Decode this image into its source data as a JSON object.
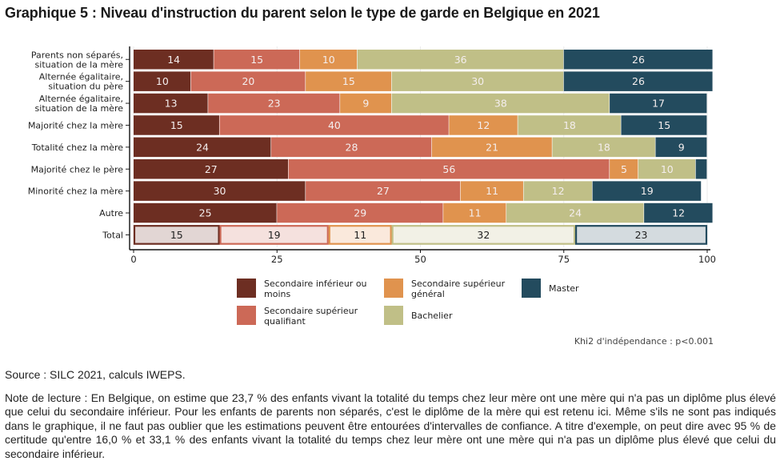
{
  "title": "Graphique 5 : Niveau d'instruction du parent selon le type de garde en Belgique en 2021",
  "chart_data": {
    "type": "bar",
    "orientation": "horizontal",
    "stacked": true,
    "title": "Graphique 5 : Niveau d'instruction du parent selon le type de garde en Belgique en 2021",
    "xlabel": "",
    "ylabel": "",
    "xlim": [
      0,
      100
    ],
    "xticks": [
      0,
      25,
      50,
      75,
      100
    ],
    "grid": true,
    "legend_position": "bottom",
    "categories": [
      "Parents non séparés,\nsituation de la mère",
      "Alternée égalitaire,\nsituation du père",
      "Alternée égalitaire,\nsituation de la mère",
      "Majorité chez la mère",
      "Totalité chez la mère",
      "Majorité chez le père",
      "Minorité chez la mère",
      "Autre",
      "Total"
    ],
    "highlight_category": "Total",
    "series": [
      {
        "name": "Secondaire inférieur ou moins",
        "color": "#6d2e22",
        "light_color": "#e2d6d4",
        "values": [
          14,
          10,
          13,
          15,
          24,
          27,
          30,
          25,
          15
        ]
      },
      {
        "name": "Secondaire supérieur qualifiant",
        "color": "#cc6957",
        "light_color": "#f5e1de",
        "values": [
          15,
          20,
          23,
          40,
          28,
          56,
          27,
          29,
          19
        ]
      },
      {
        "name": "Secondaire supérieur général",
        "color": "#e0934e",
        "light_color": "#fae9dc",
        "values": [
          10,
          15,
          9,
          12,
          21,
          5,
          11,
          11,
          11
        ]
      },
      {
        "name": "Bachelier",
        "color": "#c0bf87",
        "light_color": "#f2f1e6",
        "values": [
          36,
          30,
          38,
          18,
          18,
          10,
          12,
          24,
          32
        ]
      },
      {
        "name": "Master",
        "color": "#234b5e",
        "light_color": "#d4dbdf",
        "values": [
          26,
          26,
          17,
          15,
          9,
          2,
          19,
          12,
          23
        ]
      }
    ],
    "hidden_labels": [
      {
        "category": "Majorité chez le père",
        "series": "Master"
      }
    ],
    "annotation": "Khi2 d'indépendance : p<0.001"
  },
  "legend": [
    {
      "label": "Secondaire inférieur ou moins",
      "color": "#6d2e22"
    },
    {
      "label": "Secondaire supérieur qualifiant",
      "color": "#cc6957"
    },
    {
      "label": "Secondaire supérieur général",
      "color": "#e0934e"
    },
    {
      "label": "Bachelier",
      "color": "#c0bf87"
    },
    {
      "label": "Master",
      "color": "#234b5e"
    }
  ],
  "annotation": "Khi2 d'indépendance : p<0.001",
  "source": "Source : SILC 2021, calculs IWEPS.",
  "note": "Note de lecture : En Belgique, on estime que 23,7 % des enfants vivant la totalité du temps chez leur mère ont une mère qui n'a pas un diplôme plus élevé que celui du secondaire inférieur. Pour les enfants de parents non séparés, c'est le diplôme de la mère qui est retenu ici. Même s'ils ne sont pas indiqués dans le graphique, il ne faut pas oublier que les estimations peuvent être entourées d'intervalles de confiance. A titre d'exemple, on peut dire avec 95 % de certitude qu'entre 16,0 % et 33,1 % des enfants vivant la totalité du temps chez leur mère ont une mère qui n'a pas un diplôme plus élevé que celui du secondaire inférieur."
}
